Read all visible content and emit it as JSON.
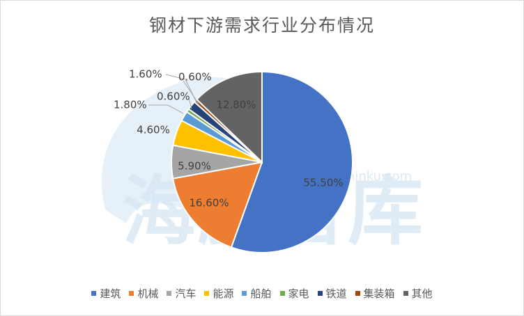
{
  "chart_data": {
    "type": "pie",
    "title": "钢材下游需求行业分布情况",
    "categories": [
      "建筑",
      "机械",
      "汽车",
      "能源",
      "船舶",
      "家电",
      "铁道",
      "集装箱",
      "其他"
    ],
    "values": [
      55.5,
      16.6,
      5.9,
      4.6,
      1.8,
      0.6,
      1.6,
      0.6,
      12.8
    ],
    "data_labels": [
      "55.50%",
      "16.60%",
      "5.90%",
      "4.60%",
      "1.80%",
      "0.60%",
      "1.60%",
      "0.60%",
      "12.80%"
    ],
    "colors": [
      "#4472c4",
      "#ed7d31",
      "#a5a5a5",
      "#ffc000",
      "#5b9bd5",
      "#70ad47",
      "#264478",
      "#9e480e",
      "#636363"
    ],
    "start_angle": "12 o'clock, clockwise",
    "legend_position": "bottom"
  },
  "watermark": {
    "text": "海豚智库",
    "url_text": "www.dolphinku.com"
  }
}
